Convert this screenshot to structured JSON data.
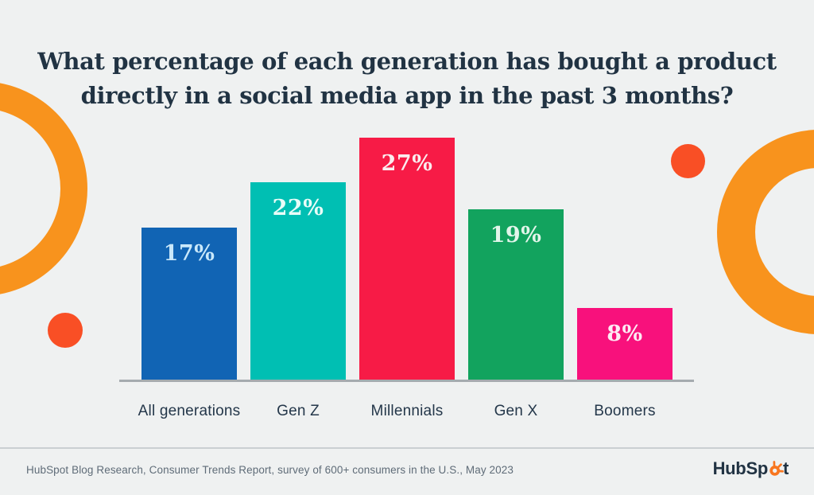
{
  "page": {
    "background": "#EFF1F1"
  },
  "title": {
    "lines": [
      "What percentage of each generation has bought a product",
      "directly in a social media app in the past 3 months?"
    ],
    "color": "#213343"
  },
  "chart_data": {
    "type": "bar",
    "title": "What percentage of each generation has bought a product directly in a social media app in the past 3 months?",
    "categories": [
      "All generations",
      "Gen Z",
      "Millennials",
      "Gen X",
      "Boomers"
    ],
    "values": [
      17,
      22,
      27,
      19,
      8
    ],
    "value_labels": [
      "17%",
      "22%",
      "27%",
      "19%",
      "8%"
    ],
    "bar_colors": [
      "#1164B4",
      "#00BFB3",
      "#F71B46",
      "#12A35E",
      "#F8117C"
    ],
    "label_colors": [
      "#C9E8FA",
      "#E8FCF8",
      "#FBEDEF",
      "#E2F5EA",
      "#FDEBF4"
    ],
    "xlabel": "",
    "ylabel": "",
    "ylim": [
      0,
      30
    ],
    "grid": false,
    "legend": false,
    "value_label_position": "inside-top"
  },
  "footer": {
    "source_text": "HubSpot Blog Research, Consumer Trends Report, survey of 600+ consumers in the U.S., May 2023",
    "logo": {
      "text_before": "HubSp",
      "text_after": "t",
      "icon": "hubspot-sprocket-icon",
      "text_color": "#213343",
      "icon_color": "#F8761F"
    }
  },
  "decorations": {
    "ring_color": "#F8931D",
    "dot_color": "#F94F25"
  }
}
